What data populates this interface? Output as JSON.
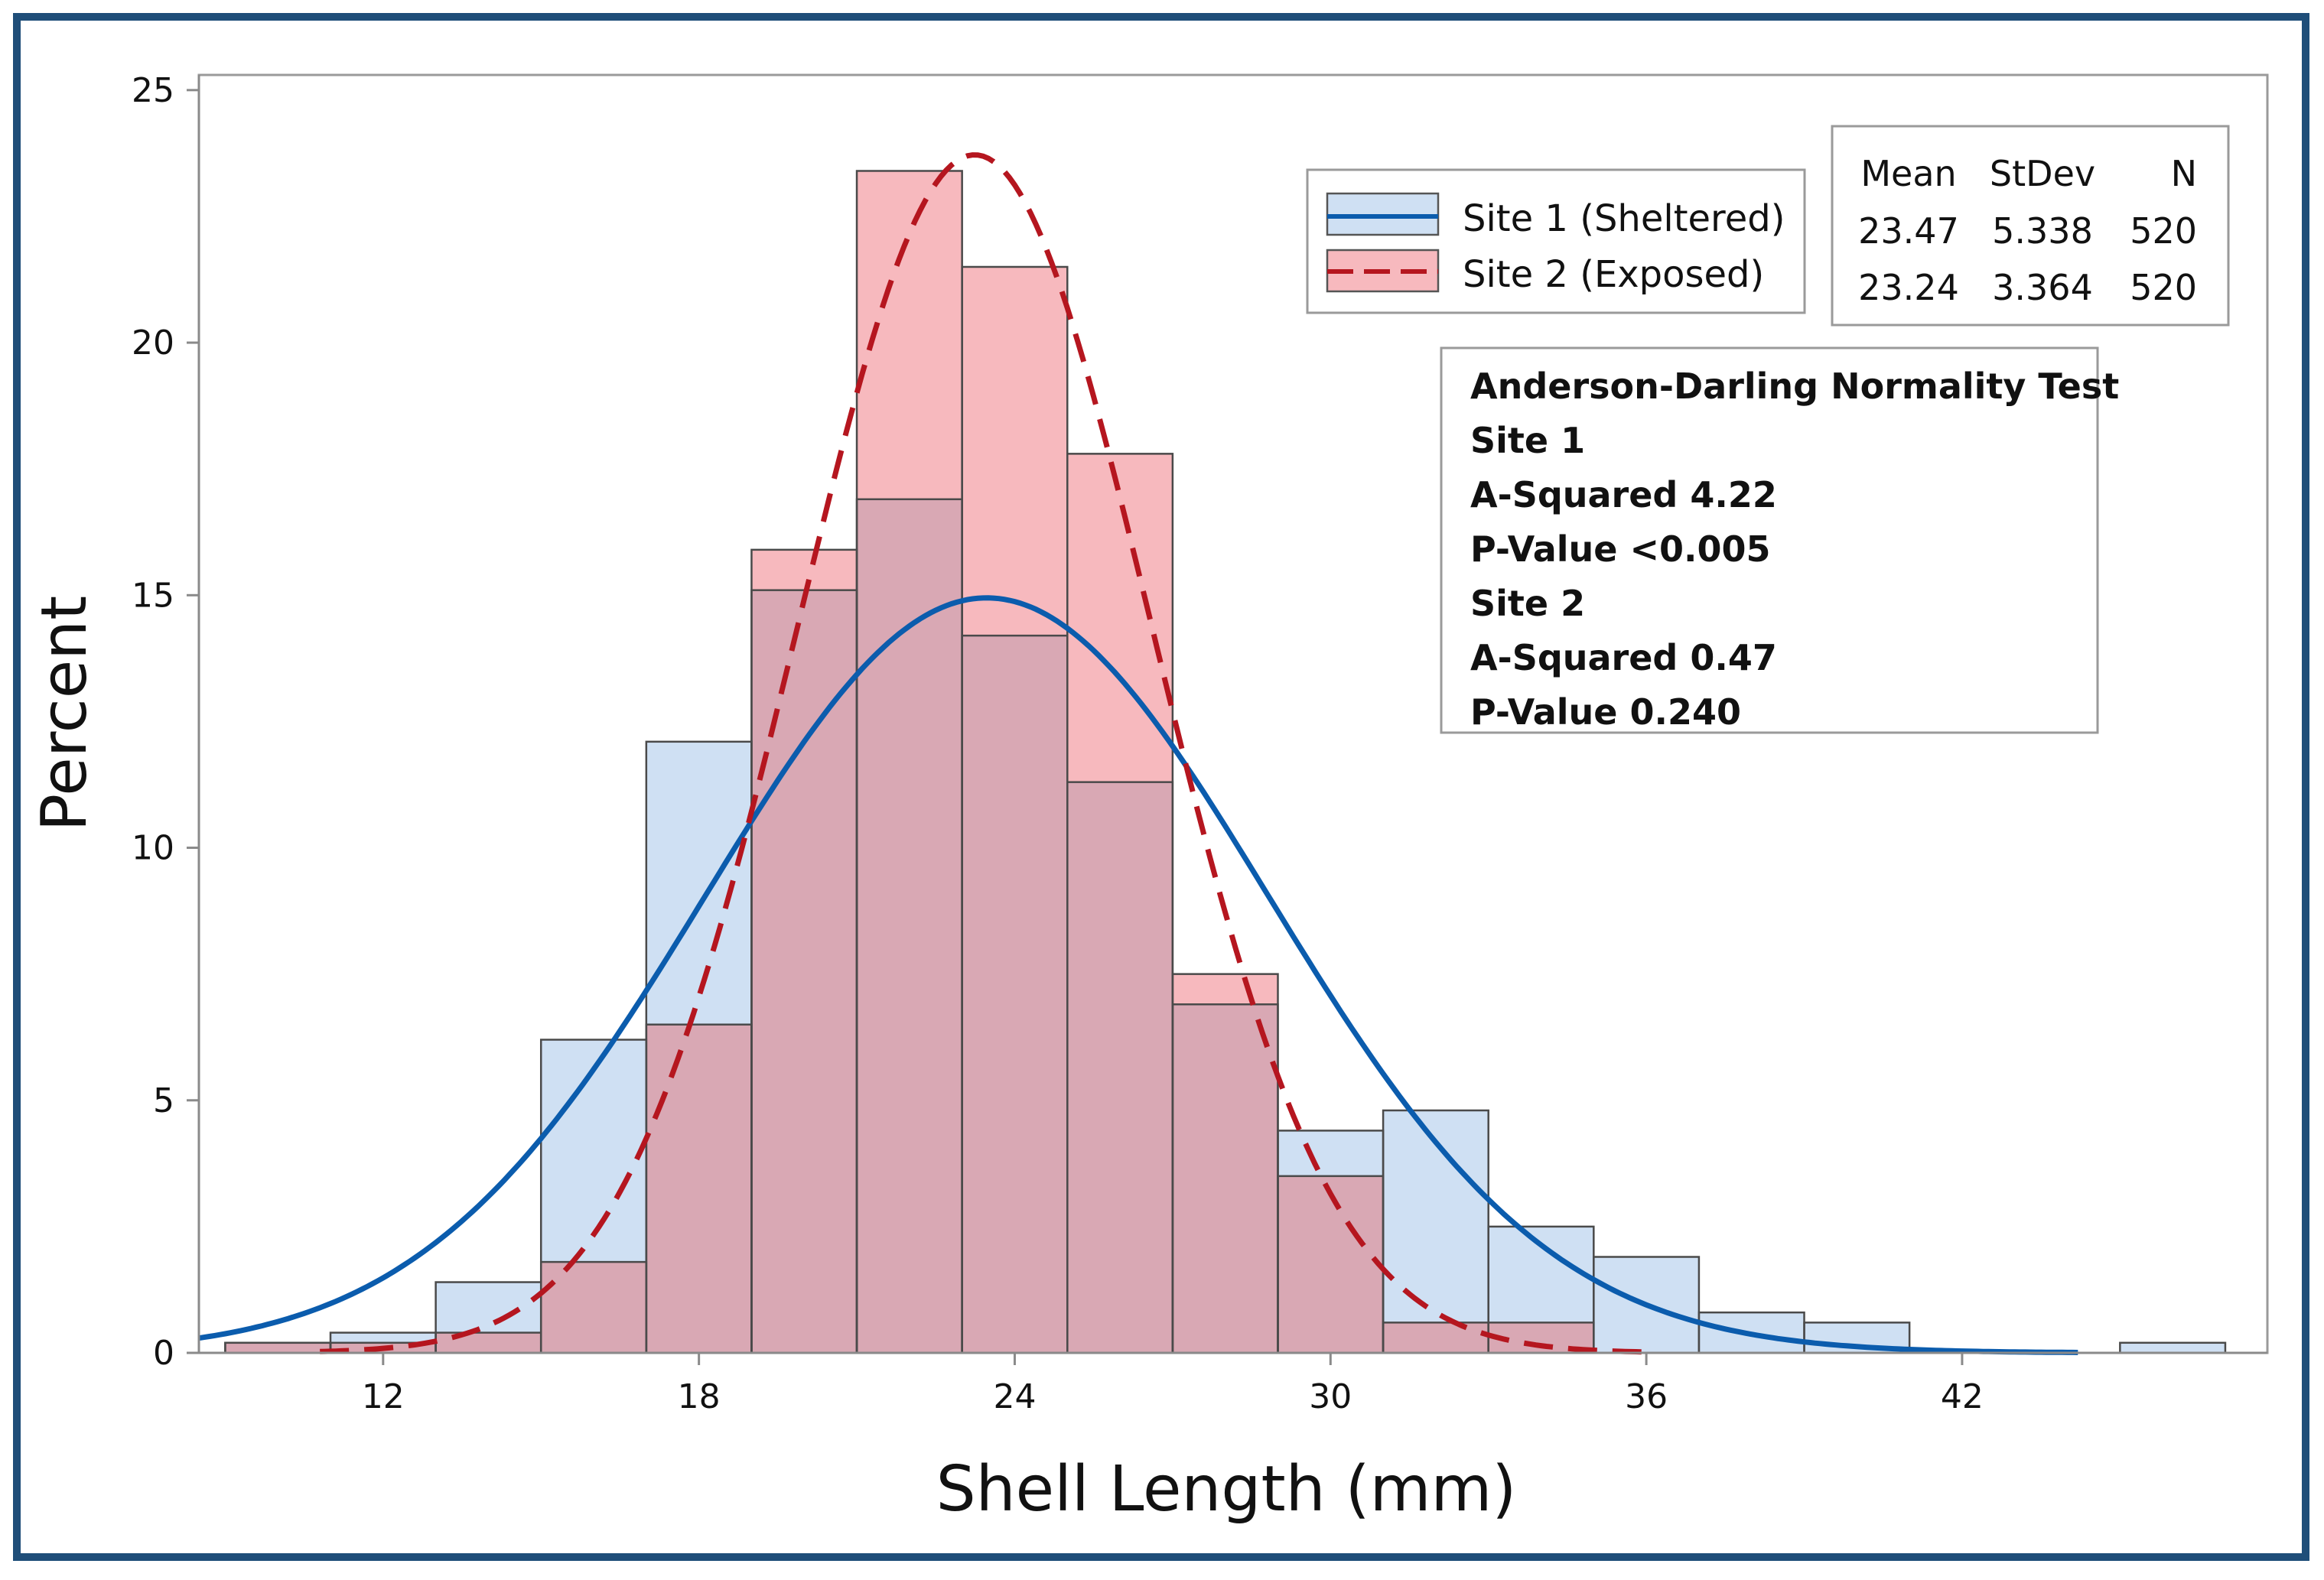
{
  "chart_data": {
    "type": "bar",
    "xlabel": "Shell Length (mm)",
    "ylabel": "Percent",
    "xlim": [
      8.5,
      47.8
    ],
    "ylim": [
      0,
      25.3
    ],
    "xticks": [
      12,
      18,
      24,
      30,
      36,
      42
    ],
    "yticks": [
      0,
      5,
      10,
      15,
      20,
      25
    ],
    "bin_width": 2,
    "bin_centers": [
      10,
      12,
      14,
      16,
      18,
      20,
      22,
      24,
      26,
      28,
      30,
      32,
      34,
      36,
      38,
      40,
      42,
      44,
      46
    ],
    "series": [
      {
        "name": "Site 1 (Sheltered)",
        "values": [
          0.2,
          0.4,
          1.4,
          6.2,
          12.1,
          15.1,
          16.9,
          14.2,
          11.3,
          6.9,
          4.4,
          4.8,
          2.5,
          1.9,
          0.8,
          0.6,
          0,
          0,
          0.2
        ],
        "fit_mean": 23.47,
        "fit_stdev": 5.338,
        "fill": "#cfe0f3",
        "line_color": "#0b5cad",
        "line_style": "solid"
      },
      {
        "name": "Site 2 (Exposed)",
        "values": [
          0.2,
          0.2,
          0.4,
          1.8,
          6.5,
          15.9,
          23.4,
          21.5,
          17.8,
          7.5,
          3.5,
          0.6,
          0.6,
          0,
          0,
          0,
          0,
          0,
          0
        ],
        "fit_mean": 23.24,
        "fit_stdev": 3.364,
        "fill": "#f7b9be",
        "line_color": "#b5161f",
        "line_style": "dashed"
      }
    ],
    "overlap_fill": "#d9a8b4",
    "legend_position": "top-right",
    "legend": [
      "Site 1 (Sheltered)",
      "Site 2 (Exposed)"
    ],
    "stats_table": {
      "headers": [
        "Mean",
        "StDev",
        "N"
      ],
      "rows": [
        [
          "23.47",
          "5.338",
          "520"
        ],
        [
          "23.24",
          "3.364",
          "520"
        ]
      ]
    },
    "annotation_lines": [
      "Anderson-Darling Normality Test",
      "Site 1",
      "A-Squared 4.22",
      "P-Value <0.005",
      "Site 2",
      "A-Squared 0.47",
      "P-Value 0.240"
    ]
  },
  "colors": {
    "frame_border": "#1f4e79",
    "axis": "#9a9a9a",
    "text": "#111111"
  }
}
